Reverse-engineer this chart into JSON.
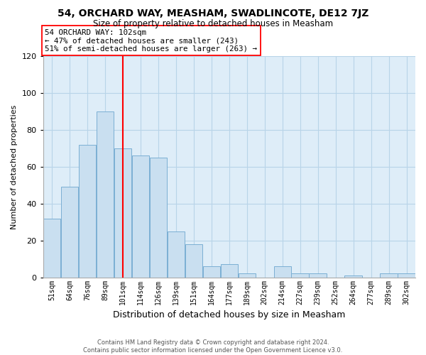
{
  "title": "54, ORCHARD WAY, MEASHAM, SWADLINCOTE, DE12 7JZ",
  "subtitle": "Size of property relative to detached houses in Measham",
  "xlabel": "Distribution of detached houses by size in Measham",
  "ylabel": "Number of detached properties",
  "bar_labels": [
    "51sqm",
    "64sqm",
    "76sqm",
    "89sqm",
    "101sqm",
    "114sqm",
    "126sqm",
    "139sqm",
    "151sqm",
    "164sqm",
    "177sqm",
    "189sqm",
    "202sqm",
    "214sqm",
    "227sqm",
    "239sqm",
    "252sqm",
    "264sqm",
    "277sqm",
    "289sqm",
    "302sqm"
  ],
  "bar_values": [
    32,
    49,
    72,
    90,
    70,
    66,
    65,
    25,
    18,
    6,
    7,
    2,
    0,
    6,
    2,
    2,
    0,
    1,
    0,
    2,
    2
  ],
  "bar_color": "#c9dff0",
  "bar_edge_color": "#7bafd4",
  "vline_x": 4.5,
  "vline_color": "red",
  "annotation_text": "54 ORCHARD WAY: 102sqm\n← 47% of detached houses are smaller (243)\n51% of semi-detached houses are larger (263) →",
  "annotation_box_color": "white",
  "annotation_box_edge": "red",
  "ylim": [
    0,
    120
  ],
  "yticks": [
    0,
    20,
    40,
    60,
    80,
    100,
    120
  ],
  "grid_color": "#b8d4e8",
  "background_color": "#deedf8",
  "footer_text": "Contains HM Land Registry data © Crown copyright and database right 2024.\nContains public sector information licensed under the Open Government Licence v3.0.",
  "title_fontsize": 10,
  "subtitle_fontsize": 8.5,
  "ylabel_fontsize": 8,
  "xlabel_fontsize": 9
}
